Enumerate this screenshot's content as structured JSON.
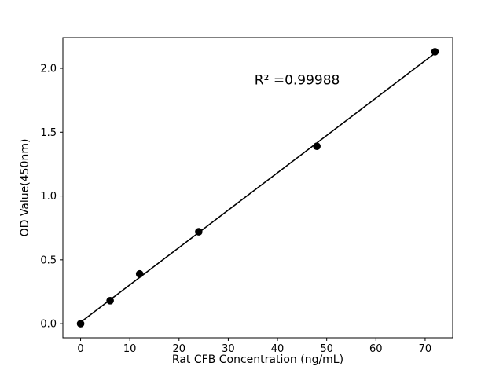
{
  "figure": {
    "background": "#ffffff"
  },
  "chart_data": {
    "type": "scatter",
    "title": "",
    "xlabel": "Rat CFB Concentration (ng/mL)",
    "ylabel": "OD Value(450nm)",
    "x": [
      0,
      6,
      12,
      24,
      48,
      72
    ],
    "y": [
      0.0,
      0.18,
      0.39,
      0.72,
      1.39,
      2.13
    ],
    "fit": {
      "type": "linear",
      "slope": 0.02926,
      "intercept": 0.0116
    },
    "annotation": {
      "text": "R² =0.99988",
      "x": 44,
      "y": 1.91
    },
    "xlim": [
      -3.6,
      75.6
    ],
    "ylim": [
      -0.11,
      2.24
    ],
    "xticks": [
      0,
      10,
      20,
      30,
      40,
      50,
      60,
      70
    ],
    "yticks": [
      0.0,
      0.5,
      1.0,
      1.5,
      2.0
    ],
    "xtick_labels": [
      "0",
      "10",
      "20",
      "30",
      "40",
      "50",
      "60",
      "70"
    ],
    "ytick_labels": [
      "0.0",
      "0.5",
      "1.0",
      "1.5",
      "2.0"
    ],
    "marker_color": "#000000",
    "line_color": "#000000",
    "grid": false,
    "legend": null
  }
}
